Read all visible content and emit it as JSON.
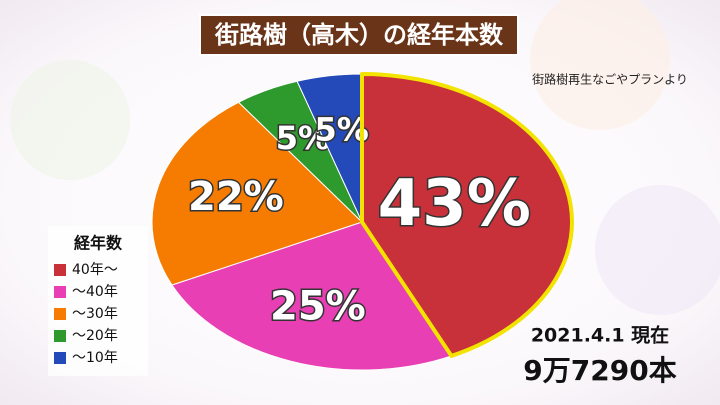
{
  "chart_data": {
    "type": "pie",
    "title": "街路樹（高木）の経年本数",
    "note": "街路樹再生なごやプランより",
    "legend_title": "経年数",
    "legend": "lower left",
    "categories": [
      "40年～",
      "～40年",
      "～30年",
      "～20年",
      "～10年"
    ],
    "values": [
      43,
      25,
      22,
      5,
      5
    ],
    "value_labels": [
      "43%",
      "25%",
      "22%",
      "5%",
      "5%"
    ],
    "colors": [
      "#c8313a",
      "#e840b4",
      "#f57c00",
      "#2e9a2e",
      "#2449b8"
    ],
    "annotations": [
      "2021.4.1 現在",
      "9万7290本"
    ]
  }
}
